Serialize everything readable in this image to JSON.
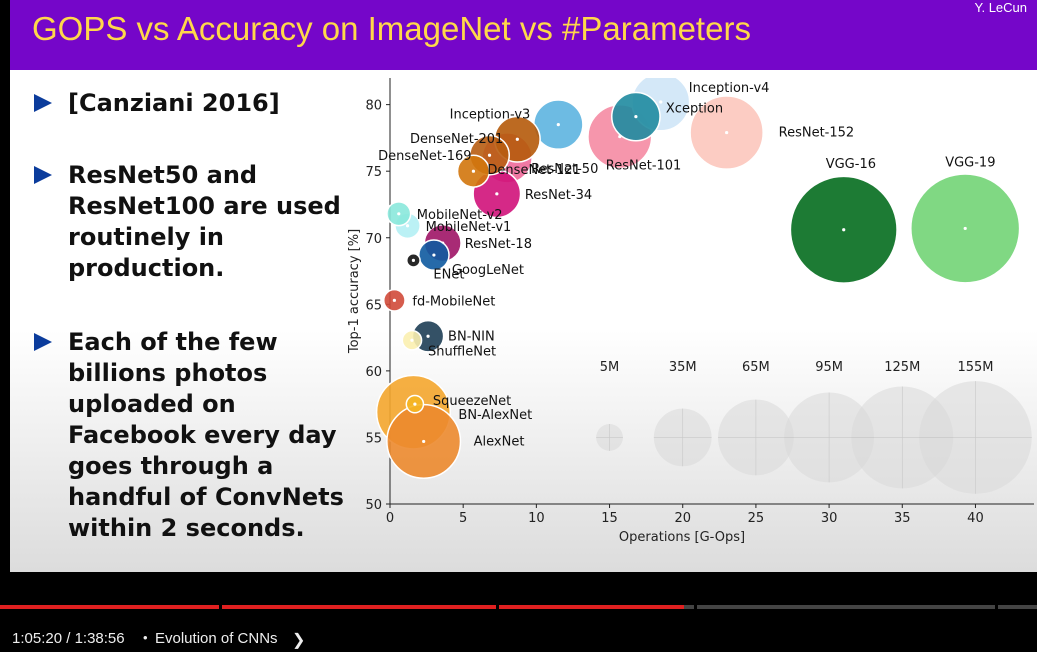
{
  "slide": {
    "title": "GOPS vs Accuracy on ImageNet vs #Parameters",
    "author": "Y. LeCun",
    "bullets": [
      "[Canziani 2016]",
      "ResNet50 and ResNet100 are used routinely in production.",
      "Each of the few billions photos uploaded on Facebook every day goes through a handful of ConvNets within 2 seconds."
    ]
  },
  "chart_data": {
    "type": "scatter",
    "xlabel": "Operations [G-Ops]",
    "ylabel": "Top-1 accuracy [%]",
    "xlim": [
      0,
      44
    ],
    "ylim": [
      50,
      82
    ],
    "xticks": [
      0,
      5,
      10,
      15,
      20,
      25,
      30,
      35,
      40
    ],
    "yticks": [
      50,
      55,
      60,
      65,
      70,
      75,
      80
    ],
    "points": [
      {
        "name": "Inception-v4",
        "x": 18.5,
        "y": 80.2,
        "params": 35,
        "color": "#cfe6f7"
      },
      {
        "name": "Inception-v3",
        "x": 11.5,
        "y": 78.5,
        "params": 24,
        "color": "#5db4e0"
      },
      {
        "name": "Xception",
        "x": 16.8,
        "y": 79.1,
        "params": 23,
        "color": "#1f8ba0"
      },
      {
        "name": "ResNet-152",
        "x": 23.0,
        "y": 77.9,
        "params": 60,
        "color": "#fcc6bd"
      },
      {
        "name": "ResNet-101",
        "x": 15.7,
        "y": 77.6,
        "params": 44,
        "color": "#f58ba3"
      },
      {
        "name": "ResNet-50",
        "x": 8.0,
        "y": 76.0,
        "params": 25,
        "color": "#f06a9a"
      },
      {
        "name": "DenseNet-201",
        "x": 8.7,
        "y": 77.4,
        "params": 20,
        "color": "#b55a0a"
      },
      {
        "name": "DenseNet-169",
        "x": 6.8,
        "y": 76.2,
        "params": 14,
        "color": "#b85d12"
      },
      {
        "name": "DenseNet-121",
        "x": 5.7,
        "y": 75.0,
        "params": 8,
        "color": "#d2760c"
      },
      {
        "name": "ResNet-34",
        "x": 7.3,
        "y": 73.3,
        "params": 22,
        "color": "#d0127a"
      },
      {
        "name": "MobileNet-v2",
        "x": 0.6,
        "y": 71.8,
        "params": 3.5,
        "color": "#8ae8dc"
      },
      {
        "name": "MobileNet-v1",
        "x": 1.2,
        "y": 70.9,
        "params": 4.2,
        "color": "#b4f0f4"
      },
      {
        "name": "ResNet-18",
        "x": 3.6,
        "y": 69.6,
        "params": 11.7,
        "color": "#9e1466"
      },
      {
        "name": "GoogLeNet",
        "x": 3.0,
        "y": 68.7,
        "params": 7,
        "color": "#0e5aa0"
      },
      {
        "name": "ENet",
        "x": 1.6,
        "y": 68.3,
        "params": 0.4,
        "color": "#111111"
      },
      {
        "name": "fd-MobileNet",
        "x": 0.3,
        "y": 65.3,
        "params": 2.5,
        "color": "#d04a3a"
      },
      {
        "name": "BN-NIN",
        "x": 2.6,
        "y": 62.6,
        "params": 7.6,
        "color": "#1e3e55"
      },
      {
        "name": "ShuffleNet",
        "x": 1.5,
        "y": 62.3,
        "params": 1.8,
        "color": "#fbf0b0"
      },
      {
        "name": "SqueezeNet",
        "x": 1.7,
        "y": 57.5,
        "params": 1.2,
        "color": "#f5b623"
      },
      {
        "name": "BN-AlexNet",
        "x": 1.6,
        "y": 56.9,
        "params": 61,
        "color": "#f4a62e"
      },
      {
        "name": "AlexNet",
        "x": 2.3,
        "y": 54.7,
        "params": 61,
        "color": "#ec8a2d"
      },
      {
        "name": "VGG-16",
        "x": 31.0,
        "y": 70.6,
        "params": 138,
        "color": "#046d1e"
      },
      {
        "name": "VGG-19",
        "x": 39.3,
        "y": 70.7,
        "params": 144,
        "color": "#72d475"
      }
    ],
    "size_legend": [
      {
        "label": "5M",
        "x": 15,
        "params": 5
      },
      {
        "label": "35M",
        "x": 20,
        "params": 35
      },
      {
        "label": "65M",
        "x": 25,
        "params": 65
      },
      {
        "label": "95M",
        "x": 30,
        "params": 95
      },
      {
        "label": "125M",
        "x": 35,
        "params": 125
      },
      {
        "label": "155M",
        "x": 40,
        "params": 155
      }
    ]
  },
  "player": {
    "current_time": "1:05:20",
    "duration": "1:38:56",
    "time_separator": "/",
    "chapter_separator": "•",
    "chapter_title": "Evolution of CNNs",
    "progress": 0.66
  }
}
